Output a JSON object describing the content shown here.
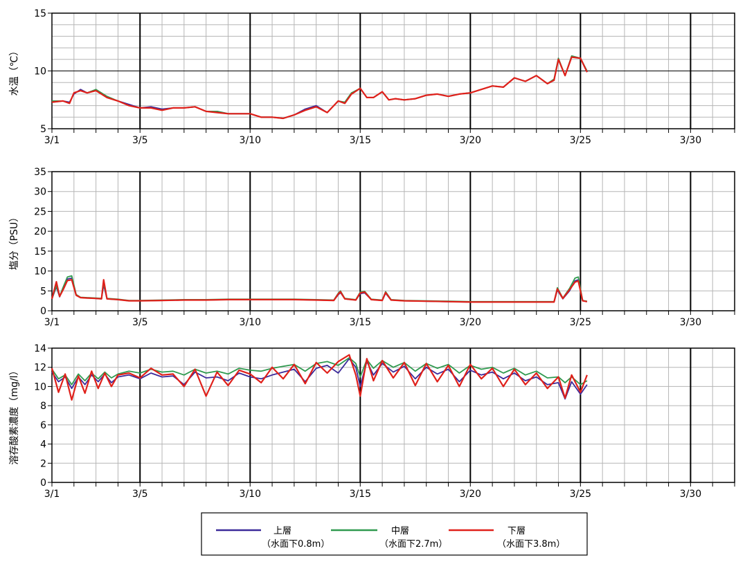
{
  "colors": {
    "upper": "#3b2a9a",
    "middle": "#2f9a4f",
    "lower": "#e0201a",
    "grid_minor": "#b5b5b5",
    "grid_major": "#000000"
  },
  "legend": {
    "items": [
      {
        "key": "upper",
        "name": "上層",
        "sub": "（水面下0.8m）"
      },
      {
        "key": "middle",
        "name": "中層",
        "sub": "（水面下2.7m）"
      },
      {
        "key": "lower",
        "name": "下層",
        "sub": "（水面下3.8m）"
      }
    ],
    "placement": "bottom-center"
  },
  "chart_data": [
    {
      "type": "line",
      "ylabel": "水温（℃）",
      "ylim": [
        5,
        15
      ],
      "yticks": [
        5,
        10,
        15
      ],
      "xlim": [
        1,
        32
      ],
      "xticks": [
        1,
        5,
        10,
        15,
        20,
        25,
        30
      ],
      "xtick_labels": [
        "3/1",
        "3/5",
        "3/10",
        "3/15",
        "3/20",
        "3/25",
        "3/30"
      ],
      "grid": true,
      "x": [
        1,
        1.5,
        1.8,
        2,
        2.3,
        2.6,
        3,
        3.5,
        4,
        4.5,
        5,
        5.5,
        6,
        6.5,
        7,
        7.5,
        8,
        8.5,
        9,
        9.5,
        10,
        10.5,
        11,
        11.5,
        12,
        12.5,
        13,
        13.5,
        14,
        14.3,
        14.6,
        15,
        15.3,
        15.6,
        16,
        16.3,
        16.6,
        17,
        17.5,
        18,
        18.5,
        19,
        19.5,
        20,
        20.5,
        21,
        21.5,
        22,
        22.5,
        23,
        23.5,
        23.8,
        24,
        24.3,
        24.6,
        25,
        25.3
      ],
      "series": [
        {
          "key": "upper",
          "name": "上層",
          "values": [
            7.3,
            7.4,
            7.3,
            8.0,
            8.4,
            8.1,
            8.3,
            7.7,
            7.4,
            7.1,
            6.8,
            6.9,
            6.7,
            6.8,
            6.8,
            6.9,
            6.5,
            6.5,
            6.3,
            6.3,
            6.3,
            6.0,
            6.0,
            5.9,
            6.2,
            6.7,
            7.0,
            6.4,
            7.4,
            7.2,
            8.0,
            8.5,
            7.7,
            7.7,
            8.2,
            7.5,
            7.6,
            7.5,
            7.6,
            7.9,
            8.0,
            7.8,
            8.0,
            8.1,
            8.4,
            8.7,
            8.6,
            9.4,
            9.1,
            9.6,
            8.9,
            9.2,
            11.0,
            9.6,
            11.2,
            11.1,
            9.9
          ]
        },
        {
          "key": "middle",
          "name": "中層",
          "values": [
            7.4,
            7.4,
            7.2,
            8.1,
            8.3,
            8.1,
            8.4,
            7.8,
            7.4,
            7.0,
            6.8,
            6.8,
            6.6,
            6.8,
            6.8,
            6.9,
            6.5,
            6.5,
            6.3,
            6.3,
            6.3,
            6.0,
            6.0,
            5.9,
            6.2,
            6.6,
            6.9,
            6.4,
            7.4,
            7.3,
            8.1,
            8.5,
            7.7,
            7.7,
            8.2,
            7.5,
            7.6,
            7.5,
            7.6,
            7.9,
            8.0,
            7.8,
            8.0,
            8.1,
            8.4,
            8.7,
            8.6,
            9.4,
            9.1,
            9.6,
            8.9,
            9.3,
            11.1,
            9.6,
            11.3,
            11.1,
            10.0
          ]
        },
        {
          "key": "lower",
          "name": "下層",
          "values": [
            7.3,
            7.4,
            7.2,
            8.1,
            8.3,
            8.1,
            8.3,
            7.7,
            7.4,
            7.0,
            6.8,
            6.8,
            6.6,
            6.8,
            6.8,
            6.9,
            6.5,
            6.4,
            6.3,
            6.3,
            6.3,
            6.0,
            6.0,
            5.9,
            6.2,
            6.6,
            6.9,
            6.4,
            7.4,
            7.2,
            8.0,
            8.5,
            7.7,
            7.7,
            8.2,
            7.5,
            7.6,
            7.5,
            7.6,
            7.9,
            8.0,
            7.8,
            8.0,
            8.1,
            8.4,
            8.7,
            8.6,
            9.4,
            9.1,
            9.6,
            8.9,
            9.2,
            11.0,
            9.6,
            11.2,
            11.1,
            9.9
          ]
        }
      ]
    },
    {
      "type": "line",
      "ylabel": "塩分（PSU）",
      "ylim": [
        0,
        35
      ],
      "yticks": [
        0,
        5,
        10,
        15,
        20,
        25,
        30,
        35
      ],
      "xlim": [
        1,
        32
      ],
      "xticks": [
        1,
        5,
        10,
        15,
        20,
        25,
        30
      ],
      "xtick_labels": [
        "3/1",
        "3/5",
        "3/10",
        "3/15",
        "3/20",
        "3/25",
        "3/30"
      ],
      "grid": true,
      "x": [
        1,
        1.2,
        1.35,
        1.5,
        1.7,
        1.9,
        2.1,
        2.3,
        2.6,
        3,
        3.25,
        3.35,
        3.5,
        4,
        4.5,
        5,
        6,
        7,
        8,
        9,
        10,
        11,
        12,
        13,
        13.8,
        14,
        14.1,
        14.3,
        14.8,
        15,
        15.2,
        15.5,
        16,
        16.15,
        16.4,
        17,
        18,
        19,
        20,
        21,
        22,
        23,
        23.8,
        23.95,
        24.2,
        24.5,
        24.75,
        24.9,
        25.1,
        25.3
      ],
      "series": [
        {
          "key": "upper",
          "name": "上層",
          "values": [
            3.0,
            6.0,
            3.5,
            5.5,
            8.0,
            8.2,
            4.0,
            3.3,
            3.2,
            3.1,
            3.0,
            6.5,
            3.0,
            2.8,
            2.5,
            2.5,
            2.6,
            2.7,
            2.7,
            2.8,
            2.8,
            2.8,
            2.8,
            2.7,
            2.6,
            4.0,
            4.6,
            3.0,
            2.7,
            4.3,
            4.5,
            2.8,
            2.6,
            4.4,
            2.7,
            2.5,
            2.4,
            2.3,
            2.2,
            2.2,
            2.2,
            2.2,
            2.2,
            5.2,
            3.0,
            5.0,
            7.5,
            7.8,
            2.5,
            2.3
          ]
        },
        {
          "key": "middle",
          "name": "中層",
          "values": [
            3.0,
            6.3,
            3.6,
            5.8,
            8.5,
            8.8,
            4.1,
            3.4,
            3.3,
            3.2,
            3.1,
            7.0,
            3.1,
            2.9,
            2.6,
            2.6,
            2.7,
            2.8,
            2.8,
            2.9,
            2.9,
            2.9,
            2.9,
            2.8,
            2.7,
            4.4,
            5.0,
            3.1,
            2.8,
            4.7,
            4.9,
            2.9,
            2.7,
            4.8,
            2.8,
            2.6,
            2.5,
            2.4,
            2.3,
            2.3,
            2.3,
            2.3,
            2.3,
            5.8,
            3.2,
            5.6,
            8.2,
            8.5,
            2.6,
            2.4
          ]
        },
        {
          "key": "lower",
          "name": "下層",
          "values": [
            3.0,
            7.3,
            3.6,
            5.2,
            7.6,
            7.8,
            3.9,
            3.3,
            3.2,
            3.1,
            3.0,
            7.8,
            3.0,
            2.8,
            2.5,
            2.5,
            2.6,
            2.7,
            2.7,
            2.8,
            2.8,
            2.8,
            2.8,
            2.7,
            2.6,
            4.2,
            4.8,
            3.0,
            2.7,
            4.5,
            4.7,
            2.8,
            2.6,
            4.6,
            2.7,
            2.5,
            2.4,
            2.3,
            2.2,
            2.2,
            2.2,
            2.2,
            2.2,
            5.5,
            3.1,
            5.3,
            7.2,
            7.5,
            2.5,
            2.3
          ]
        }
      ]
    },
    {
      "type": "line",
      "ylabel": "溶存酸素濃度（mg/l）",
      "ylim": [
        0,
        14
      ],
      "yticks": [
        0,
        2,
        4,
        6,
        8,
        10,
        12,
        14
      ],
      "xlim": [
        1,
        32
      ],
      "xticks": [
        1,
        5,
        10,
        15,
        20,
        25,
        30
      ],
      "xtick_labels": [
        "3/1",
        "3/5",
        "3/10",
        "3/15",
        "3/20",
        "3/25",
        "3/30"
      ],
      "grid": true,
      "x": [
        1,
        1.3,
        1.6,
        1.9,
        2.2,
        2.5,
        2.8,
        3.1,
        3.4,
        3.7,
        4,
        4.5,
        5,
        5.5,
        6,
        6.5,
        7,
        7.5,
        8,
        8.5,
        9,
        9.5,
        10,
        10.5,
        11,
        11.5,
        12,
        12.5,
        13,
        13.5,
        14,
        14.5,
        14.8,
        15,
        15.3,
        15.6,
        16,
        16.5,
        17,
        17.5,
        18,
        18.5,
        19,
        19.5,
        20,
        20.5,
        21,
        21.5,
        22,
        22.5,
        23,
        23.5,
        24,
        24.3,
        24.6,
        25,
        25.3
      ],
      "series": [
        {
          "key": "upper",
          "name": "上層",
          "values": [
            11.5,
            10.5,
            11.0,
            9.8,
            11.0,
            10.2,
            11.2,
            10.5,
            11.3,
            10.4,
            11.0,
            11.2,
            10.8,
            11.4,
            11.0,
            11.1,
            10.2,
            11.5,
            10.9,
            11.0,
            10.6,
            11.4,
            11.0,
            10.8,
            11.2,
            11.5,
            11.8,
            10.5,
            11.9,
            12.2,
            11.4,
            12.9,
            12.0,
            10.0,
            12.6,
            11.2,
            12.4,
            11.5,
            12.1,
            10.8,
            12.0,
            11.3,
            11.8,
            10.5,
            11.7,
            11.2,
            11.5,
            10.8,
            11.4,
            10.6,
            11.0,
            10.2,
            10.4,
            8.7,
            10.5,
            9.2,
            10.2
          ]
        },
        {
          "key": "middle",
          "name": "中層",
          "values": [
            11.8,
            10.8,
            11.2,
            10.2,
            11.3,
            10.6,
            11.4,
            10.8,
            11.5,
            10.9,
            11.3,
            11.6,
            11.4,
            11.8,
            11.5,
            11.6,
            11.2,
            11.8,
            11.4,
            11.6,
            11.3,
            11.9,
            11.7,
            11.6,
            11.9,
            12.1,
            12.3,
            11.6,
            12.4,
            12.6,
            12.2,
            13.0,
            12.4,
            11.0,
            12.8,
            11.9,
            12.7,
            12.0,
            12.5,
            11.6,
            12.4,
            11.9,
            12.3,
            11.4,
            12.2,
            11.8,
            12.0,
            11.4,
            11.9,
            11.2,
            11.6,
            10.9,
            11.0,
            10.4,
            11.0,
            10.2,
            10.6
          ]
        },
        {
          "key": "lower",
          "name": "下層",
          "values": [
            11.9,
            9.4,
            11.3,
            8.6,
            11.1,
            9.3,
            11.6,
            9.8,
            11.4,
            10.0,
            11.2,
            11.4,
            10.9,
            11.9,
            11.2,
            11.3,
            10.0,
            11.8,
            9.0,
            11.5,
            10.1,
            11.7,
            11.3,
            10.4,
            12.0,
            10.8,
            12.3,
            10.3,
            12.5,
            11.4,
            12.6,
            13.3,
            11.2,
            9.0,
            12.9,
            10.6,
            12.7,
            10.9,
            12.5,
            10.1,
            12.4,
            10.5,
            12.2,
            10.0,
            12.3,
            10.8,
            11.9,
            10.0,
            11.8,
            10.2,
            11.4,
            9.8,
            11.0,
            8.8,
            11.2,
            9.4,
            11.2
          ]
        }
      ]
    }
  ]
}
